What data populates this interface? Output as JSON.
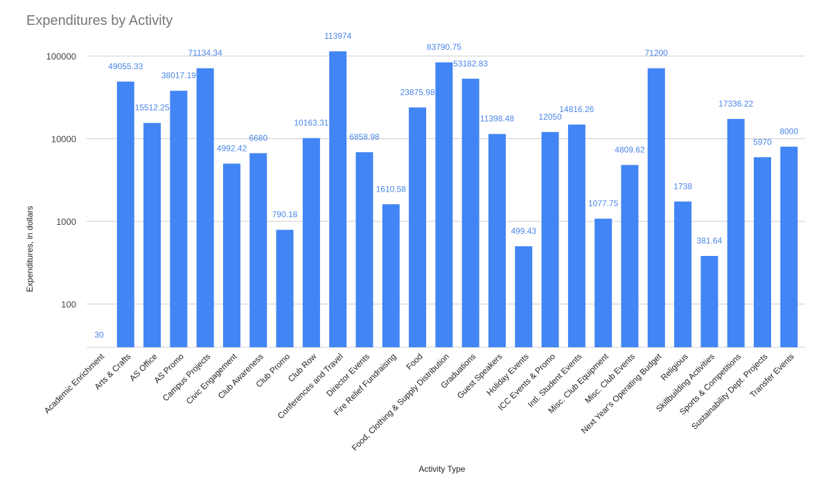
{
  "chart_data": {
    "type": "bar",
    "title": "Expenditures by Activity",
    "xlabel": "Activity Type",
    "ylabel": "Expenditures, in dollars",
    "yscale": "log",
    "ylim": [
      30,
      150000
    ],
    "yticks": [
      100,
      1000,
      10000,
      100000
    ],
    "ytick_labels": [
      "100",
      "1000",
      "10000",
      "100000"
    ],
    "bar_color": "#4285f4",
    "label_color": "#4a86e8",
    "categories": [
      "Academic Enrichment",
      "Arts & Crafts",
      "AS Office",
      "AS Promo",
      "Campus Projects",
      "Civic Engagement",
      "Club Awareness",
      "Club Promo",
      "Club Row",
      "Conferences and Travel",
      "Director Events",
      "Fire Relief Fundraising",
      "Food",
      "Food, Clothing & Supply Distribution",
      "Graduations",
      "Guest Speakers",
      "Holiday Events",
      "ICC Events & Promo",
      "Intl. Student Events",
      "Misc. Club Equipment",
      "Misc. Club Events",
      "Next Year's Operating Budget",
      "Religious",
      "Skillbuilding Activities",
      "Sports & Competitions",
      "Sustainability Dept. Projects",
      "Transfer Events"
    ],
    "values": [
      30,
      49055.33,
      15512.25,
      38017.19,
      71134.34,
      4992.42,
      6680,
      790.18,
      10163.31,
      113974,
      6858.98,
      1610.58,
      23875.98,
      83790.75,
      53182.83,
      11398.48,
      499.43,
      12050,
      14816.26,
      1077.75,
      4809.62,
      71200,
      1738,
      381.64,
      17336.22,
      5970,
      8000
    ],
    "data_labels": [
      "30",
      "49055.33",
      "15512.25",
      "38017.19",
      "71134.34",
      "4992.42",
      "6680",
      "790.18",
      "10163.31",
      "113974",
      "6858.98",
      "1610.58",
      "23875.98",
      "83790.75",
      "53182.83",
      "11398.48",
      "499.43",
      "12050",
      "14816.26",
      "1077.75",
      "4809.62",
      "71200",
      "1738",
      "381.64",
      "17336.22",
      "5970",
      "8000"
    ]
  }
}
